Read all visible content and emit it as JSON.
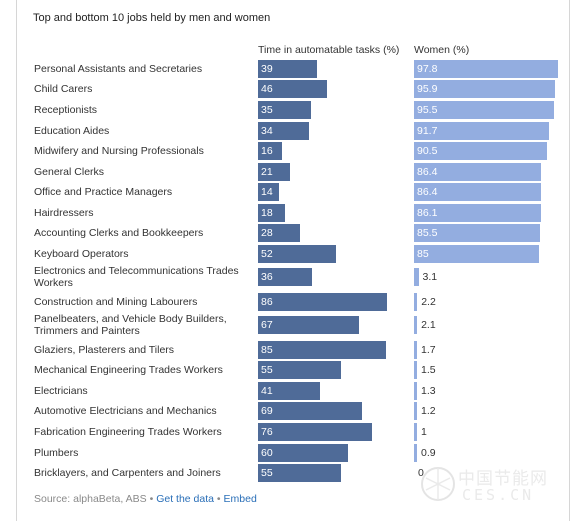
{
  "chart_data": {
    "type": "bar",
    "title": "Top and bottom 10 jobs held by men and women",
    "categories": [
      "Personal Assistants and Secretaries",
      "Child Carers",
      "Receptionists",
      "Education Aides",
      "Midwifery and Nursing Professionals",
      "General Clerks",
      "Office and Practice Managers",
      "Hairdressers",
      "Accounting Clerks and Bookkeepers",
      "Keyboard Operators",
      "Electronics and Telecommunications Trades Workers",
      "Construction and Mining Labourers",
      "Panelbeaters, and Vehicle Body Builders, Trimmers and Painters",
      "Glaziers, Plasterers and Tilers",
      "Mechanical Engineering Trades Workers",
      "Electricians",
      "Automotive Electricians and Mechanics",
      "Fabrication Engineering Trades Workers",
      "Plumbers",
      "Bricklayers, and Carpenters and Joiners"
    ],
    "series": [
      {
        "name": "Time in automatable tasks (%)",
        "color": "#4f6b98",
        "values": [
          39,
          46,
          35,
          34,
          16,
          21,
          14,
          18,
          28,
          52,
          36,
          86,
          67,
          85,
          55,
          41,
          69,
          76,
          60,
          55
        ],
        "labels": [
          "39",
          "46",
          "35",
          "34",
          "16",
          "21",
          "14",
          "18",
          "28",
          "52",
          "36",
          "86",
          "67",
          "85",
          "55",
          "41",
          "69",
          "76",
          "60",
          "55"
        ]
      },
      {
        "name": "Women (%)",
        "color": "#93ade0",
        "values": [
          97.8,
          95.9,
          95.5,
          91.7,
          90.5,
          86.4,
          86.4,
          86.1,
          85.5,
          85,
          3.1,
          2.2,
          2.1,
          1.7,
          1.5,
          1.3,
          1.2,
          1,
          0.9,
          0
        ],
        "labels": [
          "97.8",
          "95.9",
          "95.5",
          "91.7",
          "90.5",
          "86.4",
          "86.4",
          "86.1",
          "85.5",
          "85",
          "3.1",
          "2.2",
          "2.1",
          "1.7",
          "1.5",
          "1.3",
          "1.2",
          "1",
          "0.9",
          "0"
        ]
      }
    ],
    "xlim": [
      0,
      100
    ],
    "grid": false,
    "legend": "column headers above bars"
  },
  "footer": {
    "source_text": "Source: alphaBeta, ABS •",
    "get_data_label": "Get the data",
    "separator": "•",
    "embed_label": "Embed"
  },
  "watermark": {
    "cn_text": "中国节能网",
    "en_text": "CES.CN"
  }
}
